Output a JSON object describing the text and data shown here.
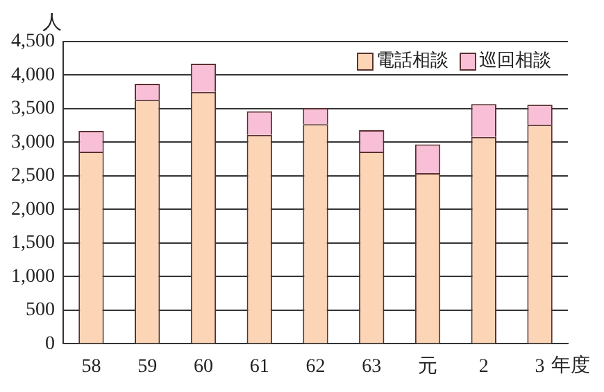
{
  "chart_data": {
    "type": "bar",
    "stacked": true,
    "ylabel": "人",
    "xlabel": "年度",
    "categories": [
      "58",
      "59",
      "60",
      "61",
      "62",
      "63",
      "元",
      "2",
      "3"
    ],
    "series": [
      {
        "name": "電話相談",
        "color": "#fbd5b5",
        "values": [
          2860,
          3630,
          3750,
          3110,
          3270,
          2860,
          2540,
          3080,
          3260
        ]
      },
      {
        "name": "巡回相談",
        "color": "#f8bfd6",
        "values": [
          310,
          240,
          420,
          350,
          240,
          320,
          430,
          490,
          300
        ]
      }
    ],
    "ylim": [
      0,
      4500
    ],
    "yticks": [
      0,
      500,
      {
        "value": 1000,
        "label": "1,000"
      },
      {
        "value": 1500,
        "label": "1,500"
      },
      {
        "value": 2000,
        "label": "2,000"
      },
      {
        "value": 2500,
        "label": "2,500"
      },
      {
        "value": 3000,
        "label": "3,000"
      },
      {
        "value": 3500,
        "label": "3,500"
      },
      {
        "value": 4000,
        "label": "4,000"
      },
      {
        "value": 4500,
        "label": "4,500"
      }
    ],
    "grid": "y",
    "legend": "top right"
  }
}
